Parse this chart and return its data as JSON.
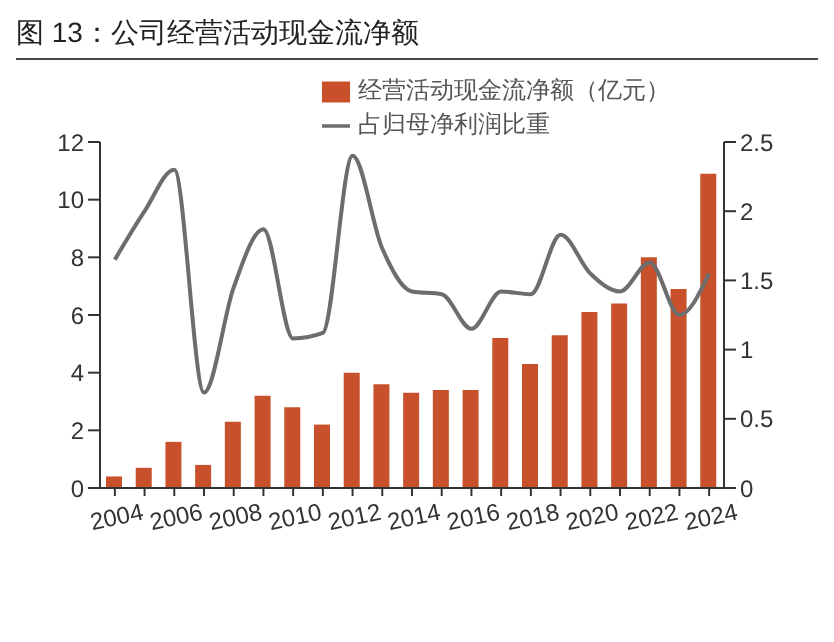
{
  "chart_data": {
    "type": "bar",
    "title": "图 13：公司经营活动现金流净额",
    "categories": [
      "2004",
      null,
      "2006",
      null,
      "2008",
      null,
      "2010",
      null,
      "2012",
      null,
      "2014",
      null,
      "2016",
      null,
      "2018",
      null,
      "2020",
      null,
      "2022",
      null,
      "2024"
    ],
    "series": [
      {
        "name": "经营活动现金流净额（亿元）",
        "color": "#c8502a",
        "values": [
          0.4,
          0.7,
          1.6,
          0.8,
          2.3,
          3.2,
          2.8,
          2.2,
          4.0,
          3.6,
          3.3,
          3.4,
          3.4,
          5.2,
          4.3,
          5.3,
          6.1,
          6.4,
          8.0,
          6.9,
          10.9
        ]
      },
      {
        "name": "占归母净利润比重",
        "type": "line",
        "axis": "y2",
        "color": "#6d6d6d",
        "values": [
          1.65,
          2.0,
          2.3,
          0.69,
          1.45,
          1.87,
          1.08,
          1.12,
          2.4,
          1.73,
          1.42,
          1.4,
          1.15,
          1.42,
          1.4,
          1.83,
          1.55,
          1.42,
          1.63,
          1.25,
          1.55
        ]
      }
    ],
    "ylim": [
      0,
      12
    ],
    "yticks": [
      0,
      2,
      4,
      6,
      8,
      10,
      12
    ],
    "y2lim": [
      0,
      2.5
    ],
    "y2ticks": [
      0,
      0.5,
      1,
      1.5,
      2,
      2.5
    ],
    "grid": false,
    "legend": "top",
    "marker": "none"
  }
}
